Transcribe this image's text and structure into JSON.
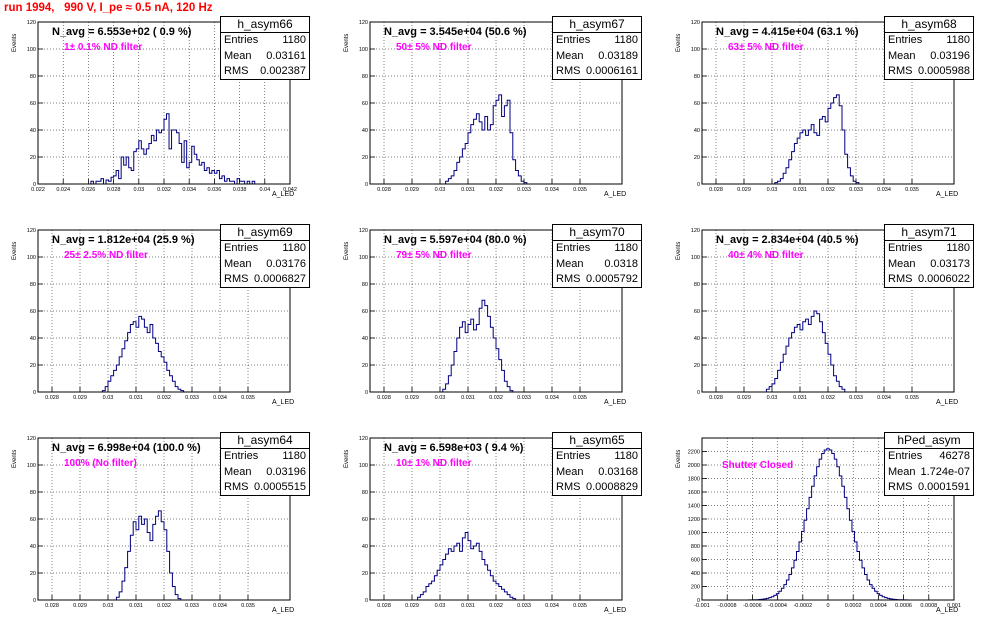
{
  "header": {
    "title": "run 1994,   990 V, I_pe ≈ 0.5 nA, 120 Hz",
    "title_color": "#ff0000"
  },
  "style": {
    "hist_color": "#000080",
    "filter_color": "#ff00ff"
  },
  "panels": [
    {
      "stats": {
        "name": "h_asym66",
        "entries": "1180",
        "mean": "0.03161",
        "rms": "0.002387"
      },
      "navg": "N_avg = 6.553e+02 ( 0.9 %)",
      "filter": "1± 0.1% ND filter",
      "ylabel": "Events",
      "xlabel": "A_LED",
      "chart_data": {
        "type": "histogram",
        "xlim": [
          0.022,
          0.042
        ],
        "ylim": [
          0,
          120
        ],
        "xticks": [
          "0.022",
          "0.024",
          "0.026",
          "0.028",
          "0.03",
          "0.032",
          "0.034",
          "0.036",
          "0.038",
          "0.04",
          "0.042"
        ],
        "yticks": [
          "0",
          "20",
          "40",
          "60",
          "80",
          "100",
          "120"
        ],
        "bin_width": 0.0002,
        "bin_start": 0.0262,
        "counts": [
          2,
          0,
          2,
          2,
          4,
          0,
          3,
          2,
          5,
          6,
          10,
          4,
          20,
          14,
          20,
          12,
          10,
          24,
          26,
          32,
          26,
          22,
          26,
          30,
          36,
          32,
          40,
          38,
          40,
          48,
          52,
          26,
          40,
          40,
          38,
          30,
          16,
          32,
          12,
          16,
          28,
          22,
          18,
          14,
          16,
          10,
          12,
          8,
          10,
          8,
          10,
          4,
          6,
          2,
          4,
          2,
          2,
          0,
          4,
          2,
          2,
          0,
          2,
          0,
          2
        ]
      }
    },
    {
      "stats": {
        "name": "h_asym67",
        "entries": "1180",
        "mean": "0.03189",
        "rms": "0.0006161"
      },
      "navg": "N_avg = 3.545e+04 (50.6 %)",
      "filter": "50± 5% ND filter",
      "ylabel": "Events",
      "xlabel": "A_LED",
      "chart_data": {
        "type": "histogram",
        "xlim": [
          0.0275,
          0.0365
        ],
        "ylim": [
          0,
          120
        ],
        "xticks": [
          "0.028",
          "0.029",
          "0.03",
          "0.031",
          "0.032",
          "0.033",
          "0.034",
          "0.035"
        ],
        "yticks": [
          "0",
          "20",
          "40",
          "60",
          "80",
          "100",
          "120"
        ],
        "bin_width": 0.0001,
        "bin_start": 0.0302,
        "counts": [
          2,
          4,
          6,
          10,
          16,
          20,
          26,
          30,
          38,
          44,
          48,
          52,
          46,
          40,
          50,
          40,
          44,
          58,
          62,
          66,
          50,
          58,
          62,
          38,
          18,
          10,
          6,
          2,
          1
        ]
      }
    },
    {
      "stats": {
        "name": "h_asym68",
        "entries": "1180",
        "mean": "0.03196",
        "rms": "0.0005988"
      },
      "navg": "N_avg = 4.415e+04 (63.1 %)",
      "filter": "63± 5% ND filter",
      "ylabel": "Events",
      "xlabel": "A_LED",
      "chart_data": {
        "type": "histogram",
        "xlim": [
          0.0275,
          0.0365
        ],
        "ylim": [
          0,
          120
        ],
        "xticks": [
          "0.028",
          "0.029",
          "0.03",
          "0.031",
          "0.032",
          "0.033",
          "0.034",
          "0.035"
        ],
        "yticks": [
          "0",
          "20",
          "40",
          "60",
          "80",
          "100",
          "120"
        ],
        "bin_width": 0.0001,
        "bin_start": 0.0301,
        "counts": [
          1,
          2,
          4,
          8,
          12,
          18,
          24,
          30,
          34,
          38,
          40,
          36,
          40,
          44,
          38,
          36,
          48,
          50,
          46,
          56,
          60,
          64,
          66,
          58,
          40,
          22,
          12,
          6,
          2,
          1
        ]
      }
    },
    {
      "stats": {
        "name": "h_asym69",
        "entries": "1180",
        "mean": "0.03176",
        "rms": "0.0006827"
      },
      "navg": "N_avg = 1.812e+04 (25.9 %)",
      "filter": "25± 2.5% ND filter",
      "ylabel": "Events",
      "xlabel": "A_LED",
      "chart_data": {
        "type": "histogram",
        "xlim": [
          0.0275,
          0.0365
        ],
        "ylim": [
          0,
          120
        ],
        "xticks": [
          "0.028",
          "0.029",
          "0.03",
          "0.031",
          "0.032",
          "0.033",
          "0.034",
          "0.035"
        ],
        "yticks": [
          "0",
          "20",
          "40",
          "60",
          "80",
          "100",
          "120"
        ],
        "bin_width": 0.0001,
        "bin_start": 0.0298,
        "counts": [
          1,
          4,
          8,
          12,
          16,
          20,
          26,
          32,
          38,
          44,
          50,
          52,
          48,
          56,
          54,
          48,
          44,
          50,
          40,
          36,
          30,
          26,
          22,
          16,
          12,
          8,
          4,
          2,
          1
        ]
      }
    },
    {
      "stats": {
        "name": "h_asym70",
        "entries": "1180",
        "mean": "0.0318",
        "rms": "0.0005792"
      },
      "navg": "N_avg = 5.597e+04 (80.0 %)",
      "filter": "79± 5% ND filter",
      "ylabel": "Events",
      "xlabel": "A_LED",
      "chart_data": {
        "type": "histogram",
        "xlim": [
          0.0275,
          0.0365
        ],
        "ylim": [
          0,
          120
        ],
        "xticks": [
          "0.028",
          "0.029",
          "0.03",
          "0.031",
          "0.032",
          "0.033",
          "0.034",
          "0.035"
        ],
        "yticks": [
          "0",
          "20",
          "40",
          "60",
          "80",
          "100",
          "120"
        ],
        "bin_width": 0.0001,
        "bin_start": 0.0301,
        "counts": [
          2,
          6,
          12,
          20,
          30,
          40,
          48,
          52,
          44,
          50,
          54,
          46,
          50,
          62,
          68,
          64,
          56,
          48,
          40,
          32,
          24,
          16,
          8,
          4,
          1
        ]
      }
    },
    {
      "stats": {
        "name": "h_asym71",
        "entries": "1180",
        "mean": "0.03173",
        "rms": "0.0006022"
      },
      "navg": "N_avg = 2.834e+04 (40.5 %)",
      "filter": "40± 4% ND filter",
      "ylabel": "Events",
      "xlabel": "A_LED",
      "chart_data": {
        "type": "histogram",
        "xlim": [
          0.0275,
          0.0365
        ],
        "ylim": [
          0,
          120
        ],
        "xticks": [
          "0.028",
          "0.029",
          "0.03",
          "0.031",
          "0.032",
          "0.033",
          "0.034",
          "0.035"
        ],
        "yticks": [
          "0",
          "20",
          "40",
          "60",
          "80",
          "100",
          "120"
        ],
        "bin_width": 0.0001,
        "bin_start": 0.0298,
        "counts": [
          2,
          4,
          6,
          10,
          16,
          22,
          28,
          34,
          40,
          44,
          48,
          50,
          46,
          52,
          54,
          50,
          56,
          60,
          58,
          52,
          44,
          36,
          28,
          20,
          12,
          8,
          4,
          2
        ]
      }
    },
    {
      "stats": {
        "name": "h_asym64",
        "entries": "1180",
        "mean": "0.03196",
        "rms": "0.0005515"
      },
      "navg": "N_avg = 6.998e+04 (100.0 %)",
      "filter": "100% (No filter)",
      "ylabel": "Events",
      "xlabel": "A_LED",
      "chart_data": {
        "type": "histogram",
        "xlim": [
          0.0275,
          0.0365
        ],
        "ylim": [
          0,
          120
        ],
        "xticks": [
          "0.028",
          "0.029",
          "0.03",
          "0.031",
          "0.032",
          "0.033",
          "0.034",
          "0.035"
        ],
        "yticks": [
          "0",
          "20",
          "40",
          "60",
          "80",
          "100",
          "120"
        ],
        "bin_width": 0.0001,
        "bin_start": 0.0303,
        "counts": [
          2,
          6,
          14,
          24,
          36,
          48,
          58,
          52,
          62,
          56,
          60,
          50,
          44,
          56,
          62,
          66,
          58,
          52,
          36,
          20,
          10,
          4,
          1
        ]
      }
    },
    {
      "stats": {
        "name": "h_asym65",
        "entries": "1180",
        "mean": "0.03168",
        "rms": "0.0008829"
      },
      "navg": "N_avg = 6.598e+03 ( 9.4 %)",
      "filter": "10± 1% ND filter",
      "ylabel": "Events",
      "xlabel": "A_LED",
      "chart_data": {
        "type": "histogram",
        "xlim": [
          0.0275,
          0.0365
        ],
        "ylim": [
          0,
          120
        ],
        "xticks": [
          "0.028",
          "0.029",
          "0.03",
          "0.031",
          "0.032",
          "0.033",
          "0.034",
          "0.035"
        ],
        "yticks": [
          "0",
          "20",
          "40",
          "60",
          "80",
          "100",
          "120"
        ],
        "bin_width": 0.0001,
        "bin_start": 0.0292,
        "counts": [
          2,
          4,
          6,
          10,
          12,
          14,
          18,
          22,
          26,
          30,
          34,
          38,
          36,
          40,
          42,
          36,
          46,
          50,
          44,
          38,
          40,
          42,
          36,
          30,
          26,
          22,
          18,
          14,
          12,
          10,
          8,
          6,
          4,
          2,
          1
        ]
      }
    },
    {
      "stats": {
        "name": "hPed_asym",
        "entries": "46278",
        "mean": "1.724e-07",
        "rms": "0.0001591"
      },
      "navg": "",
      "filter": "Shutter Closed",
      "ylabel": "Events",
      "xlabel": "A_LED",
      "chart_data": {
        "type": "histogram",
        "xlim": [
          -0.001,
          0.001
        ],
        "ylim": [
          0,
          2400
        ],
        "xticks": [
          "-0.001",
          "-0.0008",
          "-0.0006",
          "-0.0004",
          "-0.0002",
          "0",
          "0.0002",
          "0.0004",
          "0.0006",
          "0.0008",
          "0.001"
        ],
        "yticks": [
          "0",
          "200",
          "400",
          "600",
          "800",
          "1000",
          "1200",
          "1400",
          "1600",
          "1800",
          "2000",
          "2200"
        ],
        "gaussian": {
          "mean": 0.0,
          "sigma": 0.0001591,
          "peak": 2240,
          "bin_width": 2e-05
        }
      }
    }
  ]
}
